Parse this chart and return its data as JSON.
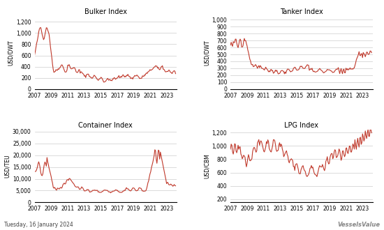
{
  "title_bulker": "Bulker Index",
  "title_tanker": "Tanker Index",
  "title_container": "Container Index",
  "title_lpg": "LPG Index",
  "ylabel_bulker": "USD/DWT",
  "ylabel_tanker": "USD/DWT",
  "ylabel_container": "USD/TEU",
  "ylabel_lpg": "USD/CBM",
  "footer": "Tuesday, 16 January 2024",
  "watermark": "VesselsValue",
  "line_color": "#c0392b",
  "bg_color": "#ffffff",
  "grid_color": "#cccccc",
  "bulker_yticks": [
    0,
    200,
    400,
    600,
    800,
    1000,
    1200
  ],
  "bulker_ylim": [
    0,
    1300
  ],
  "tanker_yticks": [
    0,
    100,
    200,
    300,
    400,
    500,
    600,
    700,
    800,
    900,
    1000
  ],
  "tanker_ylim": [
    0,
    1050
  ],
  "container_yticks": [
    0,
    5000,
    10000,
    15000,
    20000,
    25000,
    30000
  ],
  "container_ylim": [
    0,
    31000
  ],
  "lpg_yticks": [
    200,
    400,
    600,
    800,
    1000,
    1200
  ],
  "lpg_ylim": [
    150,
    1250
  ]
}
